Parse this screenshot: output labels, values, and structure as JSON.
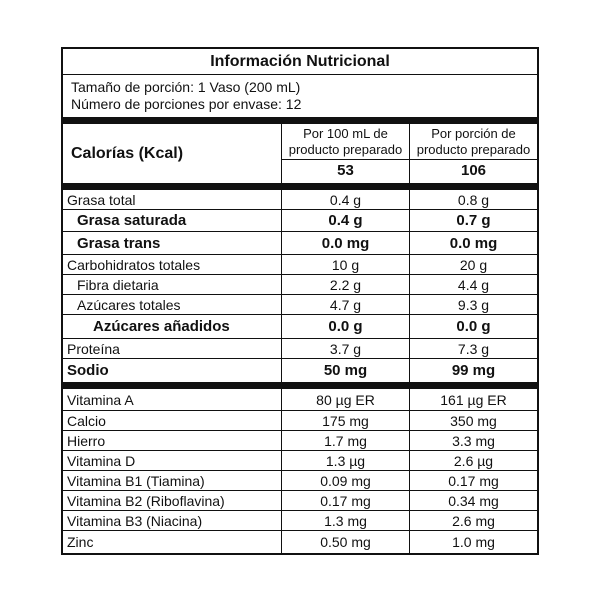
{
  "title": "Información Nutricional",
  "serving_size": "Tamaño de porción: 1 Vaso (200 mL)",
  "servings_per_container": "Número de porciones por envase: 12",
  "header": {
    "calories_label": "Calorías (Kcal)",
    "col1": "Por 100 mL de producto preparado",
    "col2": "Por porción de producto preparado",
    "kcal_100": "53",
    "kcal_portion": "106"
  },
  "rows": [
    {
      "name": "Grasa total",
      "v100": "0.4 g",
      "vp": "0.8 g"
    },
    {
      "name": "Grasa saturada",
      "v100": "0.4 g",
      "vp": "0.7 g"
    },
    {
      "name": "Grasa trans",
      "v100": "0.0 mg",
      "vp": "0.0 mg"
    },
    {
      "name": "Carbohidratos totales",
      "v100": "10 g",
      "vp": "20 g"
    },
    {
      "name": "Fibra dietaria",
      "v100": "2.2 g",
      "vp": "4.4 g"
    },
    {
      "name": "Azúcares totales",
      "v100": "4.7 g",
      "vp": "9.3 g"
    },
    {
      "name": "Azúcares añadidos",
      "v100": "0.0 g",
      "vp": "0.0 g"
    },
    {
      "name": "Proteína",
      "v100": "3.7 g",
      "vp": "7.3 g"
    },
    {
      "name": "Sodio",
      "v100": "50 mg",
      "vp": "99 mg"
    }
  ],
  "micros": [
    {
      "name": "Vitamina A",
      "v100": "80 µg ER",
      "vp": "161 µg ER"
    },
    {
      "name": "Calcio",
      "v100": "175 mg",
      "vp": "350 mg"
    },
    {
      "name": "Hierro",
      "v100": "1.7 mg",
      "vp": "3.3 mg"
    },
    {
      "name": "Vitamina D",
      "v100": "1.3 µg",
      "vp": "2.6 µg"
    },
    {
      "name": "Vitamina B1 (Tiamina)",
      "v100": "0.09 mg",
      "vp": "0.17 mg"
    },
    {
      "name": "Vitamina B2 (Riboflavina)",
      "v100": "0.17 mg",
      "vp": "0.34 mg"
    },
    {
      "name": "Vitamina B3 (Niacina)",
      "v100": "1.3 mg",
      "vp": "2.6 mg"
    },
    {
      "name": "Zinc",
      "v100": "0.50 mg",
      "vp": "1.0 mg"
    }
  ]
}
